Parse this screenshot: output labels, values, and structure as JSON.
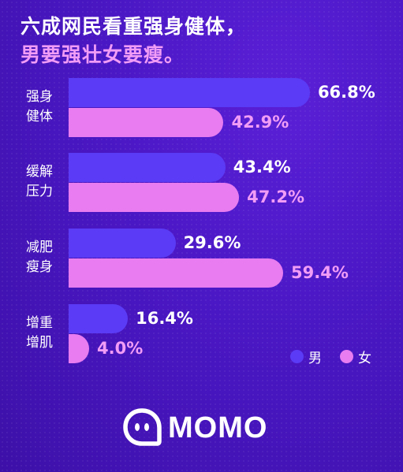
{
  "headline": {
    "line1": "六成网民看重强身健体，",
    "line2": "男要强壮女要瘦。"
  },
  "colors": {
    "male": "#5b3bf5",
    "female": "#e87cf0",
    "male_label": "#ffffff",
    "female_label": "#f19cf6"
  },
  "chart_data": {
    "type": "bar",
    "orientation": "horizontal",
    "title": "",
    "xlabel": "",
    "ylabel": "",
    "xlim": [
      0,
      100
    ],
    "categories": [
      "强身\n健体",
      "缓解\n压力",
      "减肥\n瘦身",
      "增重\n增肌"
    ],
    "series": [
      {
        "name": "男",
        "values": [
          66.8,
          43.4,
          29.6,
          16.4
        ],
        "labels": [
          "66.8%",
          "43.4%",
          "29.6%",
          "16.4%"
        ]
      },
      {
        "name": "女",
        "values": [
          42.9,
          47.2,
          59.4,
          4.0
        ],
        "labels": [
          "42.9%",
          "47.2%",
          "59.4%",
          "4.0%"
        ]
      }
    ],
    "legend": {
      "position": "bottom-right"
    },
    "grid": false
  },
  "logo": {
    "icon": "momo-logo-icon",
    "text": "MOMO"
  }
}
